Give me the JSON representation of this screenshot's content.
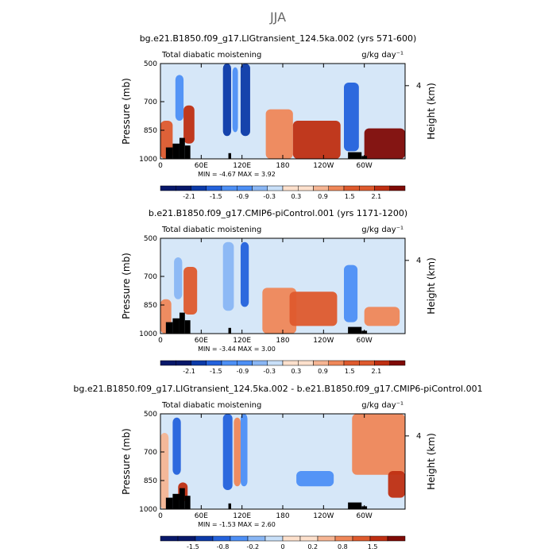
{
  "title": "JJA",
  "colors": {
    "palette": [
      "#08186a",
      "#0c3aa8",
      "#2462dc",
      "#4d8ff5",
      "#89b6f4",
      "#c8dff8",
      "#fde0cc",
      "#f6b593",
      "#ef8759",
      "#de5a2d",
      "#bf2f12",
      "#7f0a06"
    ],
    "terrain": "#000000"
  },
  "chart_data": [
    {
      "type": "heatmap",
      "title": "bg.e21.B1850.f09_g17.LIGtransient_124.5ka.002 (yrs 571-600)",
      "left_label": "Total diabatic moistening",
      "right_label": "g/kg day⁻¹",
      "ylabel": "Pressure (mb)",
      "ylabel_right": "Height (km)",
      "xticks": [
        "0",
        "60E",
        "120E",
        "180",
        "120W",
        "60W"
      ],
      "xtick_lon": [
        0,
        60,
        120,
        180,
        240,
        300
      ],
      "xlim": [
        0,
        360
      ],
      "yticks": [
        "500",
        "700",
        "850",
        "1000"
      ],
      "ytick_p": [
        500,
        700,
        850,
        1000
      ],
      "ylim": [
        1000,
        500
      ],
      "right_ticks": [
        "4"
      ],
      "right_tick_p": [
        616
      ],
      "min_max": "MIN = -4.67   MAX = 3.92",
      "colorbar_labels": [
        "-2.1",
        "-1.5",
        "-0.9",
        "-0.3",
        "0.3",
        "0.9",
        "1.5",
        "2.1"
      ],
      "levels": [
        -2.1,
        -1.8,
        -1.5,
        -1.2,
        -0.9,
        -0.6,
        -0.3,
        0,
        0.3,
        0.6,
        0.9,
        1.2,
        1.5,
        1.8,
        2.1
      ],
      "cells": [
        {
          "lon": [
            0,
            18
          ],
          "p": [
            800,
            1000
          ],
          "level": 1.2
        },
        {
          "lon": [
            22,
            34
          ],
          "p": [
            560,
            800
          ],
          "level": -1.0
        },
        {
          "lon": [
            34,
            50
          ],
          "p": [
            720,
            920
          ],
          "level": 1.6
        },
        {
          "lon": [
            92,
            104
          ],
          "p": [
            500,
            880
          ],
          "level": -1.6
        },
        {
          "lon": [
            106,
            114
          ],
          "p": [
            520,
            860
          ],
          "level": -1.2
        },
        {
          "lon": [
            118,
            132
          ],
          "p": [
            500,
            880
          ],
          "level": -1.6
        },
        {
          "lon": [
            155,
            195
          ],
          "p": [
            740,
            1000
          ],
          "level": 0.6
        },
        {
          "lon": [
            195,
            265
          ],
          "p": [
            800,
            1000
          ],
          "level": 1.6
        },
        {
          "lon": [
            270,
            292
          ],
          "p": [
            600,
            960
          ],
          "level": -1.4
        },
        {
          "lon": [
            300,
            360
          ],
          "p": [
            840,
            1000
          ],
          "level": 1.8
        }
      ],
      "terrain": [
        {
          "lon": [
            8,
            18
          ],
          "p": 940
        },
        {
          "lon": [
            18,
            28
          ],
          "p": 920
        },
        {
          "lon": [
            28,
            36
          ],
          "p": 890
        },
        {
          "lon": [
            36,
            44
          ],
          "p": 930
        },
        {
          "lon": [
            100,
            104
          ],
          "p": 970
        },
        {
          "lon": [
            276,
            296
          ],
          "p": 965
        },
        {
          "lon": [
            296,
            304
          ],
          "p": 985
        }
      ]
    },
    {
      "type": "heatmap",
      "title": "b.e21.B1850.f09_g17.CMIP6-piControl.001 (yrs 1171-1200)",
      "left_label": "Total diabatic moistening",
      "right_label": "g/kg day⁻¹",
      "ylabel": "Pressure (mb)",
      "ylabel_right": "Height (km)",
      "xticks": [
        "0",
        "60E",
        "120E",
        "180",
        "120W",
        "60W"
      ],
      "xtick_lon": [
        0,
        60,
        120,
        180,
        240,
        300
      ],
      "xlim": [
        0,
        360
      ],
      "yticks": [
        "500",
        "700",
        "850",
        "1000"
      ],
      "ytick_p": [
        500,
        700,
        850,
        1000
      ],
      "ylim": [
        1000,
        500
      ],
      "right_ticks": [
        "4"
      ],
      "right_tick_p": [
        616
      ],
      "min_max": "MIN = -3.44   MAX = 3.00",
      "colorbar_labels": [
        "-2.1",
        "-1.5",
        "-0.9",
        "-0.3",
        "0.3",
        "0.9",
        "1.5",
        "2.1"
      ],
      "levels": [
        -2.1,
        -1.8,
        -1.5,
        -1.2,
        -0.9,
        -0.6,
        -0.3,
        0,
        0.3,
        0.6,
        0.9,
        1.2,
        1.5,
        1.8,
        2.1
      ],
      "cells": [
        {
          "lon": [
            0,
            16
          ],
          "p": [
            820,
            1000
          ],
          "level": 1.0
        },
        {
          "lon": [
            20,
            32
          ],
          "p": [
            600,
            820
          ],
          "level": -0.9
        },
        {
          "lon": [
            34,
            54
          ],
          "p": [
            650,
            900
          ],
          "level": 1.2
        },
        {
          "lon": [
            92,
            108
          ],
          "p": [
            520,
            880
          ],
          "level": -0.9
        },
        {
          "lon": [
            118,
            130
          ],
          "p": [
            520,
            860
          ],
          "level": -1.3
        },
        {
          "lon": [
            150,
            200
          ],
          "p": [
            760,
            1000
          ],
          "level": 0.6
        },
        {
          "lon": [
            190,
            260
          ],
          "p": [
            780,
            960
          ],
          "level": 1.4
        },
        {
          "lon": [
            270,
            290
          ],
          "p": [
            640,
            940
          ],
          "level": -1.2
        },
        {
          "lon": [
            300,
            352
          ],
          "p": [
            860,
            960
          ],
          "level": 0.6
        }
      ],
      "terrain": [
        {
          "lon": [
            8,
            18
          ],
          "p": 940
        },
        {
          "lon": [
            18,
            28
          ],
          "p": 920
        },
        {
          "lon": [
            28,
            36
          ],
          "p": 890
        },
        {
          "lon": [
            36,
            44
          ],
          "p": 930
        },
        {
          "lon": [
            100,
            104
          ],
          "p": 970
        },
        {
          "lon": [
            276,
            296
          ],
          "p": 965
        },
        {
          "lon": [
            296,
            304
          ],
          "p": 985
        }
      ]
    },
    {
      "type": "heatmap",
      "title": "bg.e21.B1850.f09_g17.LIGtransient_124.5ka.002 - b.e21.B1850.f09_g17.CMIP6-piControl.001",
      "left_label": "Total diabatic moistening",
      "right_label": "g/kg day⁻¹",
      "ylabel": "Pressure (mb)",
      "ylabel_right": "Height (km)",
      "xticks": [
        "0",
        "60E",
        "120E",
        "180",
        "120W",
        "60W"
      ],
      "xtick_lon": [
        0,
        60,
        120,
        180,
        240,
        300
      ],
      "xlim": [
        0,
        360
      ],
      "yticks": [
        "500",
        "700",
        "850",
        "1000"
      ],
      "ytick_p": [
        500,
        700,
        850,
        1000
      ],
      "ylim": [
        1000,
        500
      ],
      "right_ticks": [
        "4"
      ],
      "right_tick_p": [
        616
      ],
      "min_max": "MIN = -1.53   MAX = 2.60",
      "colorbar_labels": [
        "-1.5",
        "-0.8",
        "-0.2",
        "0",
        "0.2",
        "0.8",
        "1.5"
      ],
      "levels": [
        -1.5,
        -1.2,
        -0.8,
        -0.5,
        -0.2,
        -0.1,
        0,
        0.1,
        0.2,
        0.5,
        0.8,
        1.2,
        1.5
      ],
      "cells": [
        {
          "lon": [
            0,
            12
          ],
          "p": [
            600,
            1000
          ],
          "level": 0.15
        },
        {
          "lon": [
            18,
            30
          ],
          "p": [
            520,
            820
          ],
          "level": -0.6
        },
        {
          "lon": [
            26,
            40
          ],
          "p": [
            860,
            960
          ],
          "level": 1.0
        },
        {
          "lon": [
            92,
            106
          ],
          "p": [
            500,
            900
          ],
          "level": -0.6
        },
        {
          "lon": [
            108,
            118
          ],
          "p": [
            520,
            880
          ],
          "level": 0.3
        },
        {
          "lon": [
            118,
            128
          ],
          "p": [
            500,
            880
          ],
          "level": -0.4
        },
        {
          "lon": [
            200,
            255
          ],
          "p": [
            800,
            880
          ],
          "level": -0.3
        },
        {
          "lon": [
            282,
            360
          ],
          "p": [
            500,
            820
          ],
          "level": 0.3
        },
        {
          "lon": [
            335,
            360
          ],
          "p": [
            800,
            940
          ],
          "level": 1.0
        }
      ],
      "terrain": [
        {
          "lon": [
            8,
            18
          ],
          "p": 940
        },
        {
          "lon": [
            18,
            28
          ],
          "p": 920
        },
        {
          "lon": [
            28,
            36
          ],
          "p": 890
        },
        {
          "lon": [
            36,
            44
          ],
          "p": 930
        },
        {
          "lon": [
            100,
            104
          ],
          "p": 970
        },
        {
          "lon": [
            276,
            296
          ],
          "p": 965
        },
        {
          "lon": [
            296,
            304
          ],
          "p": 985
        }
      ]
    }
  ]
}
